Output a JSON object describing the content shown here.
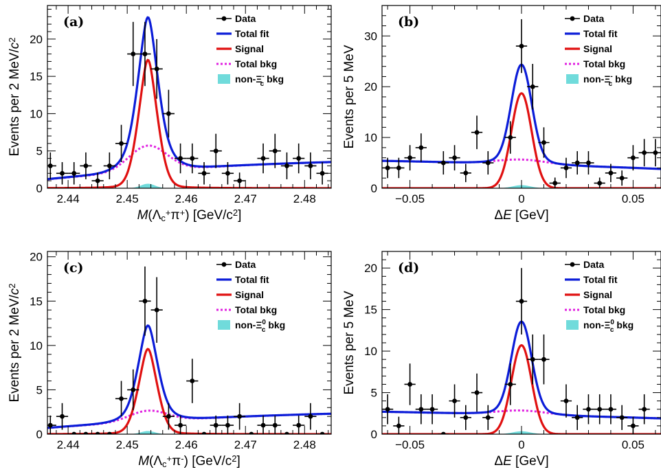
{
  "colors": {
    "data": "#000000",
    "total_fit": "#0b1cd8",
    "signal": "#e01010",
    "total_bkg": "#e020e0",
    "non_xi_bkg": "#33cccc"
  },
  "chart_data": [
    {
      "type": "line",
      "panel_label": "(a)",
      "xlabel": "M(Λc+π+) [GeV/c2]",
      "ylabel": "Events per 2 MeV/c2",
      "xlim": [
        2.4365,
        2.4845
      ],
      "ylim": [
        0,
        24.5
      ],
      "xticks": [
        2.44,
        2.45,
        2.46,
        2.47,
        2.48
      ],
      "xtick_labels": [
        "2.44",
        "2.45",
        "2.46",
        "2.47",
        "2.48"
      ],
      "yticks": [
        0,
        5,
        10,
        15,
        20
      ],
      "ytick_labels": [
        "0",
        "5",
        "10",
        "15",
        "20"
      ],
      "fit_model": {
        "mean": 2.4535,
        "sigma": 0.0017,
        "gamma": 0.0012,
        "signal_peak": 17.2,
        "bkg_base": [
          1.2,
          3.0,
          3.5
        ],
        "bkg_bump": 3.4,
        "nonxi_peak": 0.6
      },
      "legend": {
        "position": "top-right",
        "entries": [
          "Data",
          "Total fit",
          "Signal",
          "Total bkg",
          "non-Ξc- bkg"
        ]
      },
      "data_points": [
        {
          "x": 2.437,
          "y": 3,
          "err": 1.8
        },
        {
          "x": 2.439,
          "y": 2,
          "err": 1.5
        },
        {
          "x": 2.441,
          "y": 2,
          "err": 1.5
        },
        {
          "x": 2.443,
          "y": 3,
          "err": 1.8
        },
        {
          "x": 2.445,
          "y": 1,
          "err": 1.1
        },
        {
          "x": 2.447,
          "y": 3,
          "err": 1.8
        },
        {
          "x": 2.449,
          "y": 6,
          "err": 2.5
        },
        {
          "x": 2.451,
          "y": 18,
          "err": 4.3
        },
        {
          "x": 2.453,
          "y": 18,
          "err": 4.3
        },
        {
          "x": 2.455,
          "y": 16,
          "err": 4.0
        },
        {
          "x": 2.457,
          "y": 10,
          "err": 3.2
        },
        {
          "x": 2.459,
          "y": 4,
          "err": 2.0
        },
        {
          "x": 2.461,
          "y": 4,
          "err": 2.0
        },
        {
          "x": 2.463,
          "y": 2,
          "err": 1.5
        },
        {
          "x": 2.465,
          "y": 5,
          "err": 2.3
        },
        {
          "x": 2.467,
          "y": 2,
          "err": 1.5
        },
        {
          "x": 2.469,
          "y": 1,
          "err": 1.1
        },
        {
          "x": 2.473,
          "y": 4,
          "err": 2.0
        },
        {
          "x": 2.475,
          "y": 5,
          "err": 2.3
        },
        {
          "x": 2.477,
          "y": 3,
          "err": 1.8
        },
        {
          "x": 2.479,
          "y": 4,
          "err": 2.0
        },
        {
          "x": 2.481,
          "y": 3,
          "err": 1.8
        },
        {
          "x": 2.483,
          "y": 2,
          "err": 1.5
        }
      ]
    },
    {
      "type": "line",
      "panel_label": "(b)",
      "xlabel": "ΔE [GeV]",
      "ylabel": "Events per 5 MeV",
      "xlim": [
        -0.0625,
        0.0625
      ],
      "ylim": [
        0,
        36
      ],
      "xticks": [
        -0.05,
        0,
        0.05
      ],
      "xtick_labels": [
        "−0.05",
        "0",
        "0.05"
      ],
      "yticks": [
        0,
        10,
        20,
        30
      ],
      "ytick_labels": [
        "0",
        "10",
        "20",
        "30"
      ],
      "fit_model": {
        "mean": 0.0,
        "sigma": 0.0045,
        "gamma": 0.0,
        "signal_peak": 18.7,
        "bkg_base": [
          5.4,
          4.9,
          3.8
        ],
        "bkg_bump": 0.9,
        "nonxi_peak": 0.6
      },
      "legend": {
        "position": "top-right",
        "entries": [
          "Data",
          "Total fit",
          "Signal",
          "Total bkg",
          "non-Ξc- bkg"
        ]
      },
      "data_points": [
        {
          "x": -0.06,
          "y": 4,
          "err": 2.0
        },
        {
          "x": -0.055,
          "y": 4,
          "err": 2.0
        },
        {
          "x": -0.05,
          "y": 6,
          "err": 2.5
        },
        {
          "x": -0.045,
          "y": 8,
          "err": 2.8
        },
        {
          "x": -0.035,
          "y": 5,
          "err": 2.3
        },
        {
          "x": -0.03,
          "y": 6,
          "err": 2.5
        },
        {
          "x": -0.025,
          "y": 3,
          "err": 1.8
        },
        {
          "x": -0.02,
          "y": 11,
          "err": 3.3
        },
        {
          "x": -0.015,
          "y": 5,
          "err": 2.3
        },
        {
          "x": -0.005,
          "y": 10,
          "err": 3.2
        },
        {
          "x": 0.0,
          "y": 28,
          "err": 5.3
        },
        {
          "x": 0.005,
          "y": 20,
          "err": 4.5
        },
        {
          "x": 0.01,
          "y": 9,
          "err": 3.0
        },
        {
          "x": 0.015,
          "y": 1,
          "err": 1.1
        },
        {
          "x": 0.02,
          "y": 4,
          "err": 2.0
        },
        {
          "x": 0.025,
          "y": 5,
          "err": 2.3
        },
        {
          "x": 0.03,
          "y": 5,
          "err": 2.3
        },
        {
          "x": 0.035,
          "y": 1,
          "err": 1.1
        },
        {
          "x": 0.04,
          "y": 3,
          "err": 1.8
        },
        {
          "x": 0.045,
          "y": 2,
          "err": 1.5
        },
        {
          "x": 0.05,
          "y": 6,
          "err": 2.5
        },
        {
          "x": 0.055,
          "y": 7,
          "err": 2.7
        },
        {
          "x": 0.06,
          "y": 7,
          "err": 2.7
        }
      ]
    },
    {
      "type": "line",
      "panel_label": "(c)",
      "xlabel": "M(Λc+π-) [GeV/c2]",
      "ylabel": "Events per 2 MeV/c2",
      "xlim": [
        2.4365,
        2.4845
      ],
      "ylim": [
        0,
        20.6
      ],
      "xticks": [
        2.44,
        2.45,
        2.46,
        2.47,
        2.48
      ],
      "xtick_labels": [
        "2.44",
        "2.45",
        "2.46",
        "2.47",
        "2.48"
      ],
      "yticks": [
        0,
        5,
        10,
        15,
        20
      ],
      "ytick_labels": [
        "0",
        "5",
        "10",
        "15",
        "20"
      ],
      "fit_model": {
        "mean": 2.4535,
        "sigma": 0.0017,
        "gamma": 0.0012,
        "signal_peak": 9.6,
        "bkg_base": [
          0.7,
          1.9,
          2.3
        ],
        "bkg_bump": 1.2,
        "nonxi_peak": 0.35
      },
      "legend": {
        "position": "top-right",
        "entries": [
          "Data",
          "Total fit",
          "Signal",
          "Total bkg",
          "non-Ξc0 bkg"
        ]
      },
      "data_points": [
        {
          "x": 2.437,
          "y": 1,
          "err": 1.1
        },
        {
          "x": 2.439,
          "y": 2,
          "err": 1.5
        },
        {
          "x": 2.441,
          "y": 0,
          "err": 0
        },
        {
          "x": 2.443,
          "y": 0,
          "err": 0
        },
        {
          "x": 2.445,
          "y": 0,
          "err": 0
        },
        {
          "x": 2.447,
          "y": 0,
          "err": 0
        },
        {
          "x": 2.449,
          "y": 4,
          "err": 2.0
        },
        {
          "x": 2.451,
          "y": 5,
          "err": 2.3
        },
        {
          "x": 2.453,
          "y": 15,
          "err": 3.9
        },
        {
          "x": 2.455,
          "y": 14,
          "err": 3.7
        },
        {
          "x": 2.457,
          "y": 2,
          "err": 1.5
        },
        {
          "x": 2.459,
          "y": 1,
          "err": 1.1
        },
        {
          "x": 2.461,
          "y": 6,
          "err": 2.5
        },
        {
          "x": 2.463,
          "y": 0,
          "err": 0
        },
        {
          "x": 2.465,
          "y": 1,
          "err": 1.1
        },
        {
          "x": 2.467,
          "y": 1,
          "err": 1.1
        },
        {
          "x": 2.469,
          "y": 2,
          "err": 1.5
        },
        {
          "x": 2.471,
          "y": 0,
          "err": 0
        },
        {
          "x": 2.473,
          "y": 1,
          "err": 1.1
        },
        {
          "x": 2.475,
          "y": 1,
          "err": 1.1
        },
        {
          "x": 2.477,
          "y": 0,
          "err": 0
        },
        {
          "x": 2.479,
          "y": 1,
          "err": 1.1
        },
        {
          "x": 2.481,
          "y": 2,
          "err": 1.5
        },
        {
          "x": 2.483,
          "y": 0,
          "err": 0
        }
      ]
    },
    {
      "type": "line",
      "panel_label": "(d)",
      "xlabel": "ΔE [GeV]",
      "ylabel": "Events per 5 MeV",
      "xlim": [
        -0.0625,
        0.0625
      ],
      "ylim": [
        0,
        22
      ],
      "xticks": [
        -0.05,
        0,
        0.05
      ],
      "xtick_labels": [
        "−0.05",
        "0",
        "0.05"
      ],
      "yticks": [
        0,
        5,
        10,
        15,
        20
      ],
      "ytick_labels": [
        "0",
        "5",
        "10",
        "15",
        "20"
      ],
      "fit_model": {
        "mean": 0.0,
        "sigma": 0.0045,
        "gamma": 0.0,
        "signal_peak": 10.7,
        "bkg_base": [
          2.7,
          2.4,
          1.9
        ],
        "bkg_bump": 0.5,
        "nonxi_peak": 0.35
      },
      "legend": {
        "position": "top-right",
        "entries": [
          "Data",
          "Total fit",
          "Signal",
          "Total bkg",
          "non-Ξc0 bkg"
        ]
      },
      "data_points": [
        {
          "x": -0.06,
          "y": 3,
          "err": 1.8
        },
        {
          "x": -0.055,
          "y": 1,
          "err": 1.1
        },
        {
          "x": -0.05,
          "y": 6,
          "err": 2.5
        },
        {
          "x": -0.045,
          "y": 3,
          "err": 1.8
        },
        {
          "x": -0.04,
          "y": 3,
          "err": 1.8
        },
        {
          "x": -0.035,
          "y": 0,
          "err": 0
        },
        {
          "x": -0.03,
          "y": 4,
          "err": 2.0
        },
        {
          "x": -0.025,
          "y": 2,
          "err": 1.5
        },
        {
          "x": -0.02,
          "y": 5,
          "err": 2.3
        },
        {
          "x": -0.015,
          "y": 2,
          "err": 1.5
        },
        {
          "x": -0.005,
          "y": 6,
          "err": 2.5
        },
        {
          "x": 0.0,
          "y": 16,
          "err": 4.0
        },
        {
          "x": 0.005,
          "y": 9,
          "err": 3.0
        },
        {
          "x": 0.01,
          "y": 9,
          "err": 3.0
        },
        {
          "x": 0.02,
          "y": 4,
          "err": 2.0
        },
        {
          "x": 0.025,
          "y": 2,
          "err": 1.5
        },
        {
          "x": 0.03,
          "y": 3,
          "err": 1.8
        },
        {
          "x": 0.035,
          "y": 3,
          "err": 1.8
        },
        {
          "x": 0.04,
          "y": 3,
          "err": 1.8
        },
        {
          "x": 0.045,
          "y": 2,
          "err": 1.5
        },
        {
          "x": 0.05,
          "y": 1,
          "err": 1.1
        },
        {
          "x": 0.055,
          "y": 3,
          "err": 1.8
        }
      ]
    }
  ]
}
